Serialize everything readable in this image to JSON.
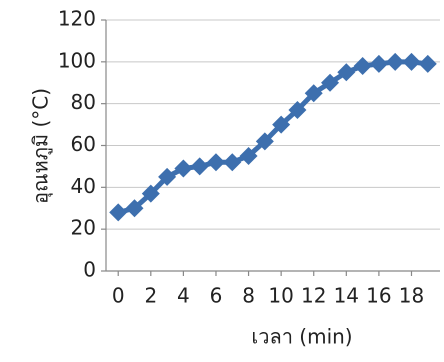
{
  "chart_data": {
    "type": "line",
    "xlabel": "เวลา (min)",
    "ylabel": "อุณหภูมิ (°C)",
    "x": [
      0,
      1,
      2,
      3,
      4,
      5,
      6,
      7,
      8,
      9,
      10,
      11,
      12,
      13,
      14,
      15,
      16,
      17,
      18,
      19
    ],
    "series": [
      {
        "color": "#3d6fae",
        "values": [
          28,
          30,
          37,
          45,
          49,
          50,
          52,
          52,
          55,
          62,
          70,
          77,
          85,
          90,
          95,
          98,
          99,
          100,
          100,
          99
        ]
      }
    ],
    "xlim": [
      -0.75,
      19.75
    ],
    "xticks": [
      0,
      2,
      4,
      6,
      8,
      10,
      12,
      14,
      16,
      18
    ],
    "ylim": [
      0,
      120
    ],
    "yticks": [
      0,
      20,
      40,
      60,
      80,
      100,
      120
    ],
    "grid": true
  }
}
